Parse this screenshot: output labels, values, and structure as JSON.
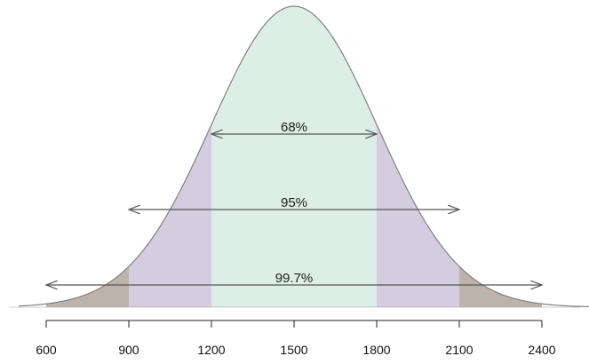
{
  "chart_data": {
    "type": "area",
    "title": "",
    "xlabel": "",
    "ylabel": "",
    "distribution": {
      "kind": "normal",
      "mean": 1500,
      "sd": 300
    },
    "xlim": [
      500,
      2600
    ],
    "ticks": [
      600,
      900,
      1200,
      1500,
      1800,
      2100,
      2400
    ],
    "tick_labels": [
      "600",
      "900",
      "1200",
      "1500",
      "1800",
      "2100",
      "2400"
    ],
    "bands": [
      {
        "label": "68%",
        "from": 1200,
        "to": 1800,
        "color": "#dceee6"
      },
      {
        "label": "95%",
        "from": 900,
        "to": 2100,
        "color": "#d3cddf"
      },
      {
        "label": "99.7%",
        "from": 600,
        "to": 2400,
        "color": "#bdb3ab"
      }
    ],
    "curve_color": "#808080",
    "arrow_color": "#555555",
    "grid": false,
    "legend": "none"
  }
}
